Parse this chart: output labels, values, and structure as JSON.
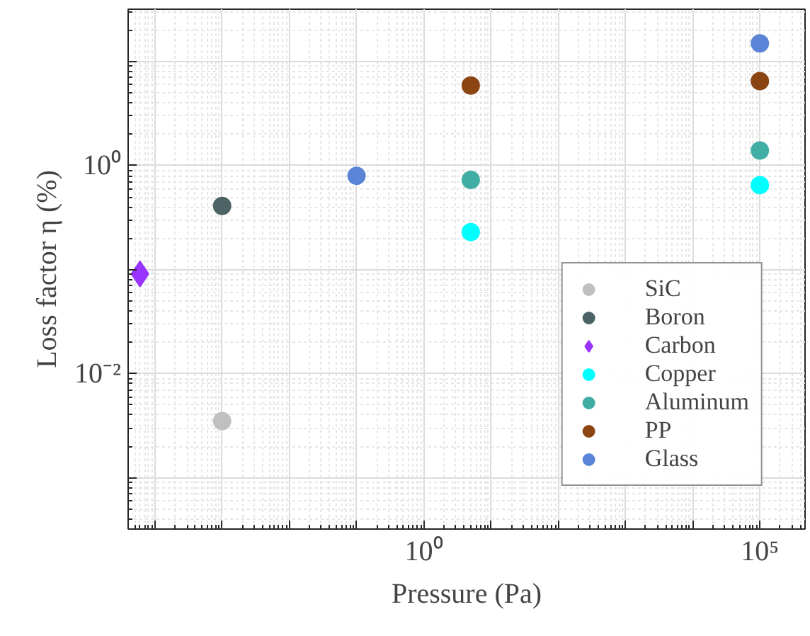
{
  "chart_data": {
    "type": "scatter",
    "xlabel": "Pressure (Pa)",
    "ylabel": "Loss factor η (%)",
    "log": "xy",
    "grid": true,
    "legend": "bottom right",
    "marker": "circle",
    "xlim": [
      4e-05,
      470000
    ],
    "ylim": [
      0.00032,
      32
    ],
    "xticks": [
      {
        "value": 0.0001,
        "label": null
      },
      {
        "value": 0.001,
        "label": null
      },
      {
        "value": 0.01,
        "label": null
      },
      {
        "value": 0.1,
        "label": null
      },
      {
        "value": 1,
        "label": "10⁰"
      },
      {
        "value": 10,
        "label": null
      },
      {
        "value": 100,
        "label": null
      },
      {
        "value": 1000,
        "label": null
      },
      {
        "value": 10000,
        "label": null
      },
      {
        "value": 100000,
        "label": "10⁵"
      }
    ],
    "yticks": [
      {
        "value": 0.001,
        "label": null
      },
      {
        "value": 0.01,
        "label": "10⁻²"
      },
      {
        "value": 0.1,
        "label": null
      },
      {
        "value": 1,
        "label": "10⁰"
      },
      {
        "value": 10,
        "label": null
      }
    ],
    "series": [
      {
        "name": "SiC",
        "color": "#c0c0c0",
        "x": [
          0.001
        ],
        "values": [
          0.0035
        ]
      },
      {
        "name": "Boron",
        "color": "#4d6466",
        "x": [
          0.001
        ],
        "values": [
          0.41
        ]
      },
      {
        "name": "Carbon",
        "color": "#9933ff",
        "marker": "diamond",
        "x": [
          6e-05
        ],
        "values": [
          0.091
        ]
      },
      {
        "name": "Copper",
        "color": "#00ffff",
        "x": [
          5,
          100000
        ],
        "values": [
          0.23,
          0.65
        ]
      },
      {
        "name": "Aluminum",
        "color": "#40aea4",
        "x": [
          5,
          100000
        ],
        "values": [
          0.73,
          1.4
        ]
      },
      {
        "name": "PP",
        "color": "#8b4513",
        "x": [
          5,
          100000
        ],
        "values": [
          5.9,
          6.5
        ]
      },
      {
        "name": "Glass",
        "color": "#5a85d6",
        "x": [
          0.1,
          100000
        ],
        "values": [
          0.8,
          15
        ]
      }
    ]
  }
}
